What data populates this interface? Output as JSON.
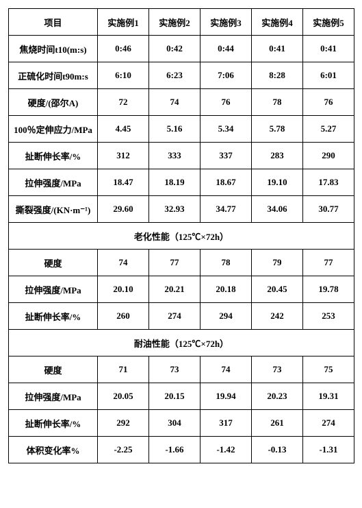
{
  "columns": [
    "项目",
    "实施例1",
    "实施例2",
    "实施例3",
    "实施例4",
    "实施例5"
  ],
  "rows_main": [
    [
      "焦烧时间t10(m:s)",
      "0:46",
      "0:42",
      "0:44",
      "0:41",
      "0:41"
    ],
    [
      "正硫化时间t90m:s",
      "6:10",
      "6:23",
      "7:06",
      "8:28",
      "6:01"
    ],
    [
      "硬度/(邵尔A)",
      "72",
      "74",
      "76",
      "78",
      "76"
    ],
    [
      "100％定伸应力/MPa",
      "4.45",
      "5.16",
      "5.34",
      "5.78",
      "5.27"
    ],
    [
      "扯断伸长率/%",
      "312",
      "333",
      "337",
      "283",
      "290"
    ],
    [
      "拉伸强度/MPa",
      "18.47",
      "18.19",
      "18.67",
      "19.10",
      "17.83"
    ],
    [
      "撕裂强度/(KN·m⁻¹)",
      "29.60",
      "32.93",
      "34.77",
      "34.06",
      "30.77"
    ]
  ],
  "section_aging": "老化性能（125℃×72h）",
  "rows_aging": [
    [
      "硬度",
      "74",
      "77",
      "78",
      "79",
      "77"
    ],
    [
      "拉伸强度/MPa",
      "20.10",
      "20.21",
      "20.18",
      "20.45",
      "19.78"
    ],
    [
      "扯断伸长率/%",
      "260",
      "274",
      "294",
      "242",
      "253"
    ]
  ],
  "section_oil": "耐油性能（125℃×72h）",
  "rows_oil": [
    [
      "硬度",
      "71",
      "73",
      "74",
      "73",
      "75"
    ],
    [
      "拉伸强度/MPa",
      "20.05",
      "20.15",
      "19.94",
      "20.23",
      "19.31"
    ],
    [
      "扯断伸长率/%",
      "292",
      "304",
      "317",
      "261",
      "274"
    ],
    [
      "体积变化率%",
      "-2.25",
      "-1.66",
      "-1.42",
      "-0.13",
      "-1.31"
    ]
  ]
}
